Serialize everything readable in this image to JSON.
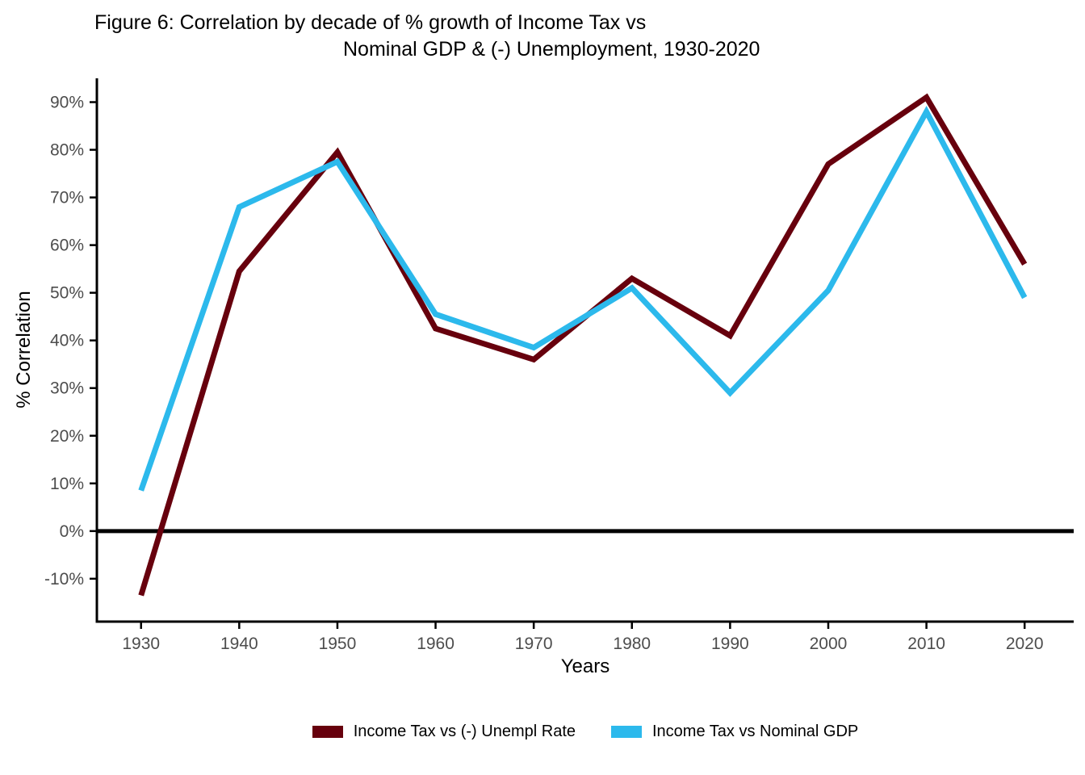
{
  "figure": {
    "title_line1": "Figure 6: Correlation by decade of % growth of Income Tax vs",
    "title_line2": "Nominal GDP & (-) Unemployment, 1930-2020",
    "x_axis_label": "Years",
    "y_axis_label": "% Correlation"
  },
  "colors": {
    "background": "#FFFFFF",
    "axis_line": "#000000",
    "zero_line": "#000000",
    "tick_text": "#4D4D4D",
    "series_unempl": "#67000D",
    "series_gdp": "#2CB9EC"
  },
  "chart_data": {
    "type": "line",
    "title": "Figure 6: Correlation by decade of % growth of Income Tax vs Nominal GDP & (-) Unemployment, 1930-2020",
    "xlabel": "Years",
    "ylabel": "% Correlation",
    "x": [
      1930,
      1940,
      1950,
      1960,
      1970,
      1980,
      1990,
      2000,
      2010,
      2020
    ],
    "series": [
      {
        "name": "Income Tax vs (-) Unempl Rate",
        "color": "#67000D",
        "values": [
          -13.5,
          54.5,
          79.5,
          42.5,
          36,
          53,
          41,
          77,
          91,
          56
        ]
      },
      {
        "name": "Income Tax vs Nominal GDP",
        "color": "#2CB9EC",
        "values": [
          8.5,
          68,
          77.5,
          45.5,
          38.5,
          51,
          29,
          50.5,
          88,
          49
        ]
      }
    ],
    "x_tick_values": [
      1930,
      1940,
      1950,
      1960,
      1970,
      1980,
      1990,
      2000,
      2010,
      2020
    ],
    "x_tick_labels": [
      "1930",
      "1940",
      "1950",
      "1960",
      "1970",
      "1980",
      "1990",
      "2000",
      "2010",
      "2020"
    ],
    "y_tick_values": [
      -10,
      0,
      10,
      20,
      30,
      40,
      50,
      60,
      70,
      80,
      90
    ],
    "y_tick_labels": [
      "-10%",
      "0%",
      "10%",
      "20%",
      "30%",
      "40%",
      "50%",
      "60%",
      "70%",
      "80%",
      "90%"
    ],
    "xlim": [
      1925.5,
      2025
    ],
    "ylim": [
      -19,
      95
    ],
    "zero_line": true,
    "grid": false,
    "legend_position": "bottom"
  }
}
